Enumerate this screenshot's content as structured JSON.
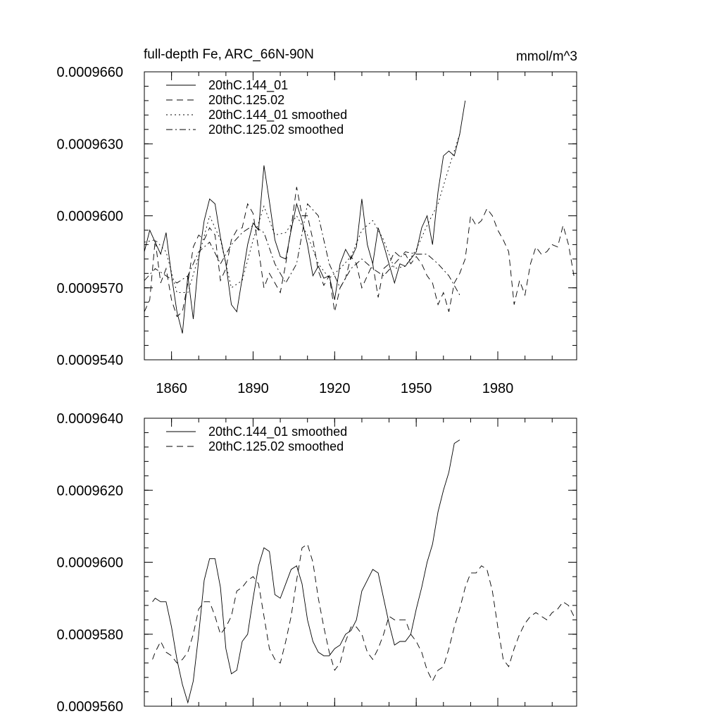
{
  "chart_data": [
    {
      "type": "line",
      "title": "full-depth Fe, ARC_66N-90N",
      "units": "mmol/m^3",
      "xlim": [
        1850,
        2009
      ],
      "ylim": [
        0.000954,
        0.000966
      ],
      "xticks": [
        1860,
        1890,
        1920,
        1950,
        1980
      ],
      "xtick_labels": [
        "1860",
        "1890",
        "1920",
        "1950",
        "1980"
      ],
      "yticks": [
        0.000954,
        0.000957,
        0.00096,
        0.000963,
        0.000966
      ],
      "ytick_labels": [
        "0.0009540",
        "0.0009570",
        "0.0009600",
        "0.0009630",
        "0.0009660"
      ],
      "legend_position": "top-left",
      "series": [
        {
          "name": "20thC.144_01",
          "style": "solid",
          "x": [
            1850,
            1852,
            1854,
            1856,
            1858,
            1860,
            1862,
            1864,
            1866,
            1868,
            1870,
            1872,
            1874,
            1876,
            1878,
            1880,
            1882,
            1884,
            1886,
            1888,
            1890,
            1892,
            1894,
            1896,
            1898,
            1900,
            1902,
            1904,
            1906,
            1908,
            1910,
            1912,
            1914,
            1916,
            1918,
            1920,
            1922,
            1924,
            1926,
            1928,
            1930,
            1932,
            1934,
            1936,
            1938,
            1940,
            1942,
            1944,
            1946,
            1948,
            1950,
            1952,
            1954,
            1956,
            1958,
            1960,
            1962,
            1964,
            1966,
            1968
          ],
          "y": [
            0.0009585,
            0.0009594,
            0.0009589,
            0.0009584,
            0.0009593,
            0.0009575,
            0.000956,
            0.0009551,
            0.0009575,
            0.0009557,
            0.0009582,
            0.0009598,
            0.0009607,
            0.0009605,
            0.0009591,
            0.000958,
            0.0009563,
            0.000956,
            0.0009574,
            0.0009588,
            0.0009597,
            0.0009594,
            0.0009621,
            0.0009606,
            0.000959,
            0.0009583,
            0.0009582,
            0.0009594,
            0.0009605,
            0.0009598,
            0.0009588,
            0.0009575,
            0.0009579,
            0.0009574,
            0.0009575,
            0.0009565,
            0.000958,
            0.0009586,
            0.0009582,
            0.0009587,
            0.0009607,
            0.0009588,
            0.000958,
            0.0009595,
            0.0009588,
            0.000958,
            0.0009572,
            0.000958,
            0.0009579,
            0.0009582,
            0.0009585,
            0.0009595,
            0.00096,
            0.0009588,
            0.000961,
            0.0009625,
            0.0009627,
            0.0009625,
            0.0009634,
            0.0009648
          ]
        },
        {
          "name": "20thC.125.02",
          "style": "dashed",
          "x": [
            1850,
            1852,
            1854,
            1856,
            1858,
            1860,
            1862,
            1864,
            1866,
            1868,
            1870,
            1872,
            1874,
            1876,
            1878,
            1880,
            1882,
            1884,
            1886,
            1888,
            1890,
            1892,
            1894,
            1896,
            1898,
            1900,
            1902,
            1904,
            1906,
            1908,
            1910,
            1912,
            1914,
            1916,
            1918,
            1920,
            1922,
            1924,
            1926,
            1928,
            1930,
            1932,
            1934,
            1936,
            1938,
            1940,
            1942,
            1944,
            1946,
            1948,
            1950,
            1952,
            1954,
            1956,
            1958,
            1960,
            1962,
            1964,
            1966,
            1968,
            1970,
            1972,
            1974,
            1976,
            1978,
            1980,
            1982,
            1984,
            1986,
            1988,
            1990,
            1992,
            1994,
            1996,
            1998,
            2000,
            2002,
            2004,
            2006,
            2008
          ],
          "y": [
            0.000956,
            0.0009565,
            0.000959,
            0.0009572,
            0.0009578,
            0.0009565,
            0.0009558,
            0.000956,
            0.0009572,
            0.0009587,
            0.0009592,
            0.000959,
            0.0009595,
            0.0009592,
            0.0009573,
            0.0009578,
            0.000959,
            0.0009594,
            0.0009595,
            0.0009605,
            0.0009601,
            0.0009586,
            0.000957,
            0.0009576,
            0.0009572,
            0.0009568,
            0.000958,
            0.0009595,
            0.0009612,
            0.00096,
            0.00096,
            0.000959,
            0.0009577,
            0.0009571,
            0.0009575,
            0.000956,
            0.000957,
            0.0009574,
            0.0009583,
            0.000958,
            0.000957,
            0.0009575,
            0.000958,
            0.0009566,
            0.0009578,
            0.000958,
            0.0009585,
            0.0009583,
            0.0009584,
            0.000958,
            0.0009583,
            0.000958,
            0.0009575,
            0.0009572,
            0.0009563,
            0.0009568,
            0.000956,
            0.0009572,
            0.0009576,
            0.0009582,
            0.00096,
            0.0009596,
            0.0009598,
            0.0009603,
            0.00096,
            0.0009594,
            0.000959,
            0.0009585,
            0.0009563,
            0.0009573,
            0.0009567,
            0.000958,
            0.0009587,
            0.0009584,
            0.0009585,
            0.0009588,
            0.0009587,
            0.0009596,
            0.0009588,
            0.0009575
          ]
        },
        {
          "name": "20thC.144_01 smoothed",
          "style": "dotted",
          "x": [
            1850,
            1854,
            1858,
            1862,
            1866,
            1870,
            1874,
            1878,
            1882,
            1886,
            1890,
            1894,
            1898,
            1902,
            1906,
            1910,
            1914,
            1918,
            1922,
            1926,
            1930,
            1934,
            1938,
            1942,
            1946,
            1950,
            1954,
            1958,
            1962,
            1966
          ],
          "y": [
            0.0009589,
            0.000959,
            0.0009585,
            0.0009568,
            0.0009568,
            0.0009583,
            0.00096,
            0.000959,
            0.000957,
            0.0009573,
            0.000959,
            0.0009604,
            0.0009592,
            0.0009593,
            0.00096,
            0.0009592,
            0.000958,
            0.0009574,
            0.0009578,
            0.0009583,
            0.0009594,
            0.0009598,
            0.000959,
            0.0009578,
            0.0009579,
            0.0009586,
            0.0009596,
            0.0009605,
            0.000962,
            0.0009634
          ]
        },
        {
          "name": "20thC.125.02 smoothed",
          "style": "dash-dot",
          "x": [
            1850,
            1854,
            1858,
            1862,
            1866,
            1870,
            1874,
            1878,
            1882,
            1886,
            1890,
            1894,
            1898,
            1902,
            1906,
            1910,
            1914,
            1918,
            1922,
            1926,
            1930,
            1934,
            1938,
            1942,
            1946,
            1950,
            1954,
            1958,
            1962,
            1966
          ],
          "y": [
            0.0009573,
            0.0009578,
            0.0009575,
            0.0009572,
            0.0009575,
            0.0009585,
            0.0009589,
            0.000958,
            0.0009588,
            0.0009593,
            0.0009596,
            0.0009593,
            0.000958,
            0.0009572,
            0.000958,
            0.0009605,
            0.00096,
            0.000958,
            0.000957,
            0.0009578,
            0.0009582,
            0.0009578,
            0.0009575,
            0.000958,
            0.0009585,
            0.0009584,
            0.0009584,
            0.000958,
            0.0009575,
            0.0009567
          ]
        }
      ]
    },
    {
      "type": "line",
      "xlim": [
        1850,
        2009
      ],
      "ylim": [
        0.000956,
        0.000964
      ],
      "xticks": [
        1860,
        1890,
        1920,
        1950,
        1980
      ],
      "yticks": [
        0.000956,
        0.000958,
        0.00096,
        0.000962,
        0.000964
      ],
      "ytick_labels": [
        "0.0009560",
        "0.0009580",
        "0.0009600",
        "0.0009620",
        "0.0009640"
      ],
      "legend_position": "top-left",
      "series": [
        {
          "name": "20thC.144_01 smoothed",
          "style": "solid",
          "x": [
            1853,
            1854,
            1856,
            1858,
            1860,
            1862,
            1864,
            1866,
            1868,
            1870,
            1872,
            1874,
            1876,
            1878,
            1880,
            1882,
            1884,
            1886,
            1888,
            1890,
            1892,
            1894,
            1896,
            1898,
            1900,
            1902,
            1904,
            1906,
            1908,
            1910,
            1912,
            1914,
            1916,
            1918,
            1920,
            1922,
            1924,
            1926,
            1928,
            1930,
            1932,
            1934,
            1936,
            1938,
            1940,
            1942,
            1944,
            1946,
            1948,
            1950,
            1952,
            1954,
            1956,
            1958,
            1960,
            1962,
            1964,
            1966
          ],
          "y": [
            0.0009589,
            0.000959,
            0.0009589,
            0.0009589,
            0.0009582,
            0.0009573,
            0.0009566,
            0.0009561,
            0.0009567,
            0.000958,
            0.0009595,
            0.0009601,
            0.0009601,
            0.0009593,
            0.0009576,
            0.0009569,
            0.000957,
            0.0009578,
            0.000958,
            0.000959,
            0.0009599,
            0.0009604,
            0.0009603,
            0.0009591,
            0.000959,
            0.0009594,
            0.0009598,
            0.0009599,
            0.0009594,
            0.0009584,
            0.0009578,
            0.0009575,
            0.0009574,
            0.0009574,
            0.0009576,
            0.0009577,
            0.000958,
            0.0009581,
            0.0009584,
            0.0009592,
            0.0009595,
            0.0009598,
            0.0009597,
            0.000959,
            0.0009583,
            0.0009577,
            0.0009578,
            0.0009578,
            0.000958,
            0.0009587,
            0.0009593,
            0.00096,
            0.0009605,
            0.0009614,
            0.000962,
            0.0009625,
            0.0009633,
            0.0009634
          ]
        },
        {
          "name": "20thC.125.02 smoothed",
          "style": "dashed",
          "x": [
            1853,
            1854,
            1856,
            1858,
            1860,
            1862,
            1864,
            1866,
            1868,
            1870,
            1872,
            1874,
            1876,
            1878,
            1880,
            1882,
            1884,
            1886,
            1888,
            1890,
            1892,
            1894,
            1896,
            1898,
            1900,
            1902,
            1904,
            1906,
            1908,
            1910,
            1912,
            1914,
            1916,
            1918,
            1920,
            1922,
            1924,
            1926,
            1928,
            1930,
            1932,
            1934,
            1936,
            1938,
            1940,
            1942,
            1944,
            1946,
            1948,
            1950,
            1952,
            1954,
            1956,
            1958,
            1960,
            1962,
            1964,
            1966,
            1968,
            1970,
            1972,
            1974,
            1976,
            1978,
            1980,
            1982,
            1984,
            1986,
            1988,
            1990,
            1992,
            1994,
            1996,
            1998,
            2000,
            2002,
            2004,
            2006,
            2008
          ],
          "y": [
            0.0009573,
            0.0009575,
            0.0009578,
            0.0009575,
            0.0009574,
            0.0009572,
            0.0009573,
            0.0009575,
            0.000958,
            0.0009587,
            0.0009589,
            0.0009589,
            0.0009585,
            0.000958,
            0.0009582,
            0.0009585,
            0.0009592,
            0.0009593,
            0.0009595,
            0.0009596,
            0.0009594,
            0.0009585,
            0.0009576,
            0.0009573,
            0.0009572,
            0.0009578,
            0.0009585,
            0.0009595,
            0.0009604,
            0.0009605,
            0.00096,
            0.000959,
            0.0009582,
            0.0009575,
            0.000957,
            0.0009572,
            0.0009578,
            0.0009582,
            0.0009582,
            0.000958,
            0.0009575,
            0.0009573,
            0.0009576,
            0.000958,
            0.0009585,
            0.0009584,
            0.0009584,
            0.0009584,
            0.000958,
            0.0009578,
            0.0009575,
            0.000957,
            0.0009567,
            0.000957,
            0.0009571,
            0.0009576,
            0.0009582,
            0.0009587,
            0.0009593,
            0.0009597,
            0.0009597,
            0.0009599,
            0.0009598,
            0.0009592,
            0.0009582,
            0.0009573,
            0.0009571,
            0.0009576,
            0.000958,
            0.0009583,
            0.0009585,
            0.0009586,
            0.0009585,
            0.0009584,
            0.0009586,
            0.0009587,
            0.0009589,
            0.0009588,
            0.0009585
          ]
        }
      ]
    }
  ]
}
